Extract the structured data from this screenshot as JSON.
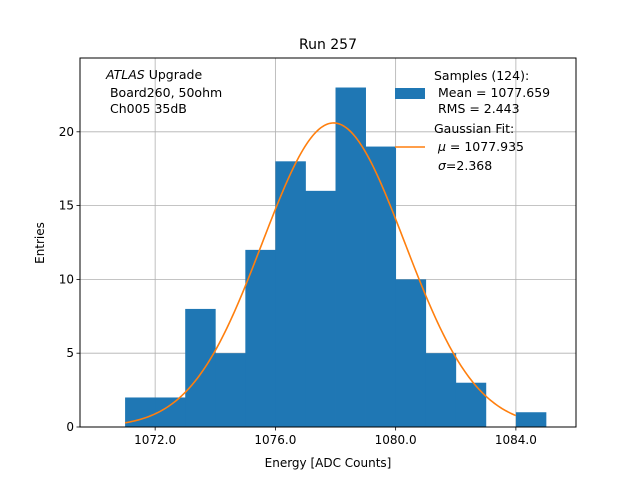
{
  "chart_data": {
    "type": "bar",
    "title": "Run 257",
    "xlabel": "Energy [ADC Counts]",
    "ylabel": "Entries",
    "xlim": [
      1069.5,
      1086.0
    ],
    "ylim": [
      0,
      25
    ],
    "grid": true,
    "xticks": [
      1072.0,
      1076.0,
      1080.0,
      1084.0
    ],
    "xtick_labels": [
      "1072.0",
      "1076.0",
      "1080.0",
      "1084.0"
    ],
    "yticks": [
      0,
      5,
      10,
      15,
      20
    ],
    "ytick_labels": [
      "0",
      "5",
      "10",
      "15",
      "20"
    ],
    "histogram": {
      "name": "Samples (124)",
      "color": "#1f77b4",
      "bin_edges": [
        1071,
        1072,
        1073,
        1074,
        1075,
        1076,
        1077,
        1078,
        1079,
        1080,
        1081,
        1082,
        1083,
        1084,
        1085
      ],
      "counts": [
        2,
        2,
        8,
        5,
        12,
        18,
        16,
        23,
        19,
        10,
        5,
        3,
        0,
        1
      ]
    },
    "fit": {
      "name": "Gaussian Fit",
      "color": "#ff7f0e",
      "mu": 1077.935,
      "sigma": 2.368,
      "amplitude": 20.6,
      "x_range": [
        1071.0,
        1084.0
      ]
    },
    "annotation": {
      "line1_italic": "ATLAS",
      "line1_rest": " Upgrade",
      "line2": " Board260, 50ohm",
      "line3": " Ch005 35dB"
    },
    "legend": {
      "position": "top-right",
      "samples_title": "Samples (124):",
      "samples_mean": " Mean = 1077.659",
      "samples_rms": " RMS = 2.443",
      "fit_title": "Gaussian Fit:",
      "fit_mu_symbol": "μ",
      "fit_mu_rest": " = 1077.935",
      "fit_sigma_symbol": "σ",
      "fit_sigma_rest": "=2.368"
    }
  }
}
